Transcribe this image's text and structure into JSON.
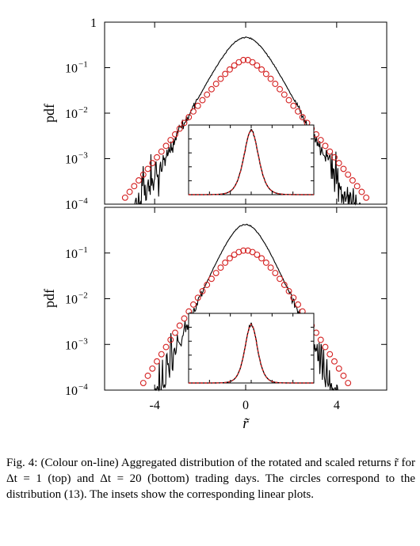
{
  "caption": {
    "text": "Fig. 4: (Colour on-line) Aggregated distribution of the rotated and scaled returns r̃ for Δt = 1 (top) and Δt = 20 (bottom) trading days. The circles correspond to the distribution (13). The insets show the corresponding linear plots."
  },
  "colors": {
    "empirical": "#000000",
    "model": "#d42020"
  },
  "chart_data": [
    {
      "type": "line",
      "panel": "top",
      "ylabel": "pdf",
      "xlabel": "",
      "y_scale": "log",
      "ylim": [
        0.0001,
        1
      ],
      "xlim": [
        -6.2,
        6.2
      ],
      "y_ticks": [
        {
          "value": 1,
          "label": "1"
        },
        {
          "value": 0.1,
          "base": "10",
          "exp": "−1"
        },
        {
          "value": 0.01,
          "base": "10",
          "exp": "−2"
        },
        {
          "value": 0.001,
          "base": "10",
          "exp": "−3"
        },
        {
          "value": 0.0001,
          "base": "10",
          "exp": "−4"
        }
      ],
      "x_ticks": [
        -4,
        0,
        4
      ],
      "series": [
        {
          "role": "empirical",
          "style": "line",
          "color": "#000000",
          "peak": 0.46,
          "tail_scale": 0.94,
          "noise_floor": 0.0001
        },
        {
          "role": "model",
          "style": "circles",
          "color": "#d42020",
          "x": [
            -5.3,
            -5.1,
            -4.9,
            -4.7,
            -4.5,
            -4.3,
            -4.1,
            -3.9,
            -3.7,
            -3.5,
            -3.3,
            -3.1,
            -2.9,
            -2.7,
            -2.5,
            -2.3,
            -2.1,
            -1.9,
            -1.7,
            -1.5,
            -1.3,
            -1.1,
            -0.9,
            -0.7,
            -0.5,
            -0.3,
            -0.1,
            0.1,
            0.3,
            0.5,
            0.7,
            0.9,
            1.1,
            1.3,
            1.5,
            1.7,
            1.9,
            2.1,
            2.3,
            2.5,
            2.7,
            2.9,
            3.1,
            3.3,
            3.5,
            3.7,
            3.9,
            4.1,
            4.3,
            4.5,
            4.7,
            4.9,
            5.1,
            5.3
          ],
          "y": [
            0.000139,
            0.000186,
            0.000249,
            0.000333,
            0.000446,
            0.000596,
            0.000798,
            0.00107,
            0.00143,
            0.00191,
            0.00256,
            0.00342,
            0.00457,
            0.00611,
            0.00816,
            0.0109,
            0.0145,
            0.0193,
            0.0255,
            0.0336,
            0.044,
            0.0569,
            0.0727,
            0.0911,
            0.1115,
            0.1315,
            0.147,
            0.147,
            0.1315,
            0.1115,
            0.0911,
            0.0727,
            0.0569,
            0.044,
            0.0336,
            0.0255,
            0.0193,
            0.0145,
            0.0109,
            0.00816,
            0.00611,
            0.00457,
            0.00342,
            0.00256,
            0.00191,
            0.00143,
            0.00107,
            0.000798,
            0.000596,
            0.000446,
            0.000333,
            0.000249,
            0.000186,
            0.000139
          ]
        }
      ],
      "inset": {
        "type": "line",
        "y_scale": "linear",
        "xlim": [
          -6,
          6
        ],
        "ylim": [
          0,
          0.5
        ],
        "peak": 0.46,
        "tail_scale": 0.94
      }
    },
    {
      "type": "line",
      "panel": "bottom",
      "ylabel": "pdf",
      "xlabel": "r̃",
      "y_scale": "log",
      "ylim": [
        0.0001,
        1
      ],
      "xlim": [
        -6.2,
        6.2
      ],
      "y_ticks": [
        {
          "value": 0.1,
          "base": "10",
          "exp": "−1"
        },
        {
          "value": 0.01,
          "base": "10",
          "exp": "−2"
        },
        {
          "value": 0.001,
          "base": "10",
          "exp": "−3"
        },
        {
          "value": 0.0001,
          "base": "10",
          "exp": "−4"
        }
      ],
      "x_ticks": [
        -4,
        0,
        4
      ],
      "series": [
        {
          "role": "empirical",
          "style": "line",
          "color": "#000000",
          "peak": 0.42,
          "tail_scale": 0.8,
          "noise_floor": 0.0001
        },
        {
          "role": "model",
          "style": "circles",
          "color": "#d42020",
          "x": [
            -4.5,
            -4.3,
            -4.1,
            -3.9,
            -3.7,
            -3.5,
            -3.3,
            -3.1,
            -2.9,
            -2.7,
            -2.5,
            -2.3,
            -2.1,
            -1.9,
            -1.7,
            -1.5,
            -1.3,
            -1.1,
            -0.9,
            -0.7,
            -0.5,
            -0.3,
            -0.1,
            0.1,
            0.3,
            0.5,
            0.7,
            0.9,
            1.1,
            1.3,
            1.5,
            1.7,
            1.9,
            2.1,
            2.3,
            2.5,
            2.7,
            2.9,
            3.1,
            3.3,
            3.5,
            3.7,
            3.9,
            4.1,
            4.3,
            4.5
          ],
          "y": [
            0.000143,
            0.000206,
            0.000296,
            0.000425,
            0.00061,
            0.000876,
            0.00126,
            0.0018,
            0.00258,
            0.00369,
            0.00526,
            0.00745,
            0.0105,
            0.0146,
            0.0201,
            0.0273,
            0.0365,
            0.0479,
            0.0614,
            0.0765,
            0.0918,
            0.105,
            0.113,
            0.113,
            0.105,
            0.0918,
            0.0765,
            0.0614,
            0.0479,
            0.0365,
            0.0273,
            0.0201,
            0.0146,
            0.0105,
            0.00745,
            0.00526,
            0.00369,
            0.00258,
            0.0018,
            0.00126,
            0.000876,
            0.00061,
            0.000425,
            0.000296,
            0.000206,
            0.000143
          ]
        }
      ],
      "inset": {
        "type": "line",
        "y_scale": "linear",
        "xlim": [
          -6,
          6
        ],
        "ylim": [
          0,
          0.5
        ],
        "peak": 0.42,
        "tail_scale": 0.8
      }
    }
  ]
}
